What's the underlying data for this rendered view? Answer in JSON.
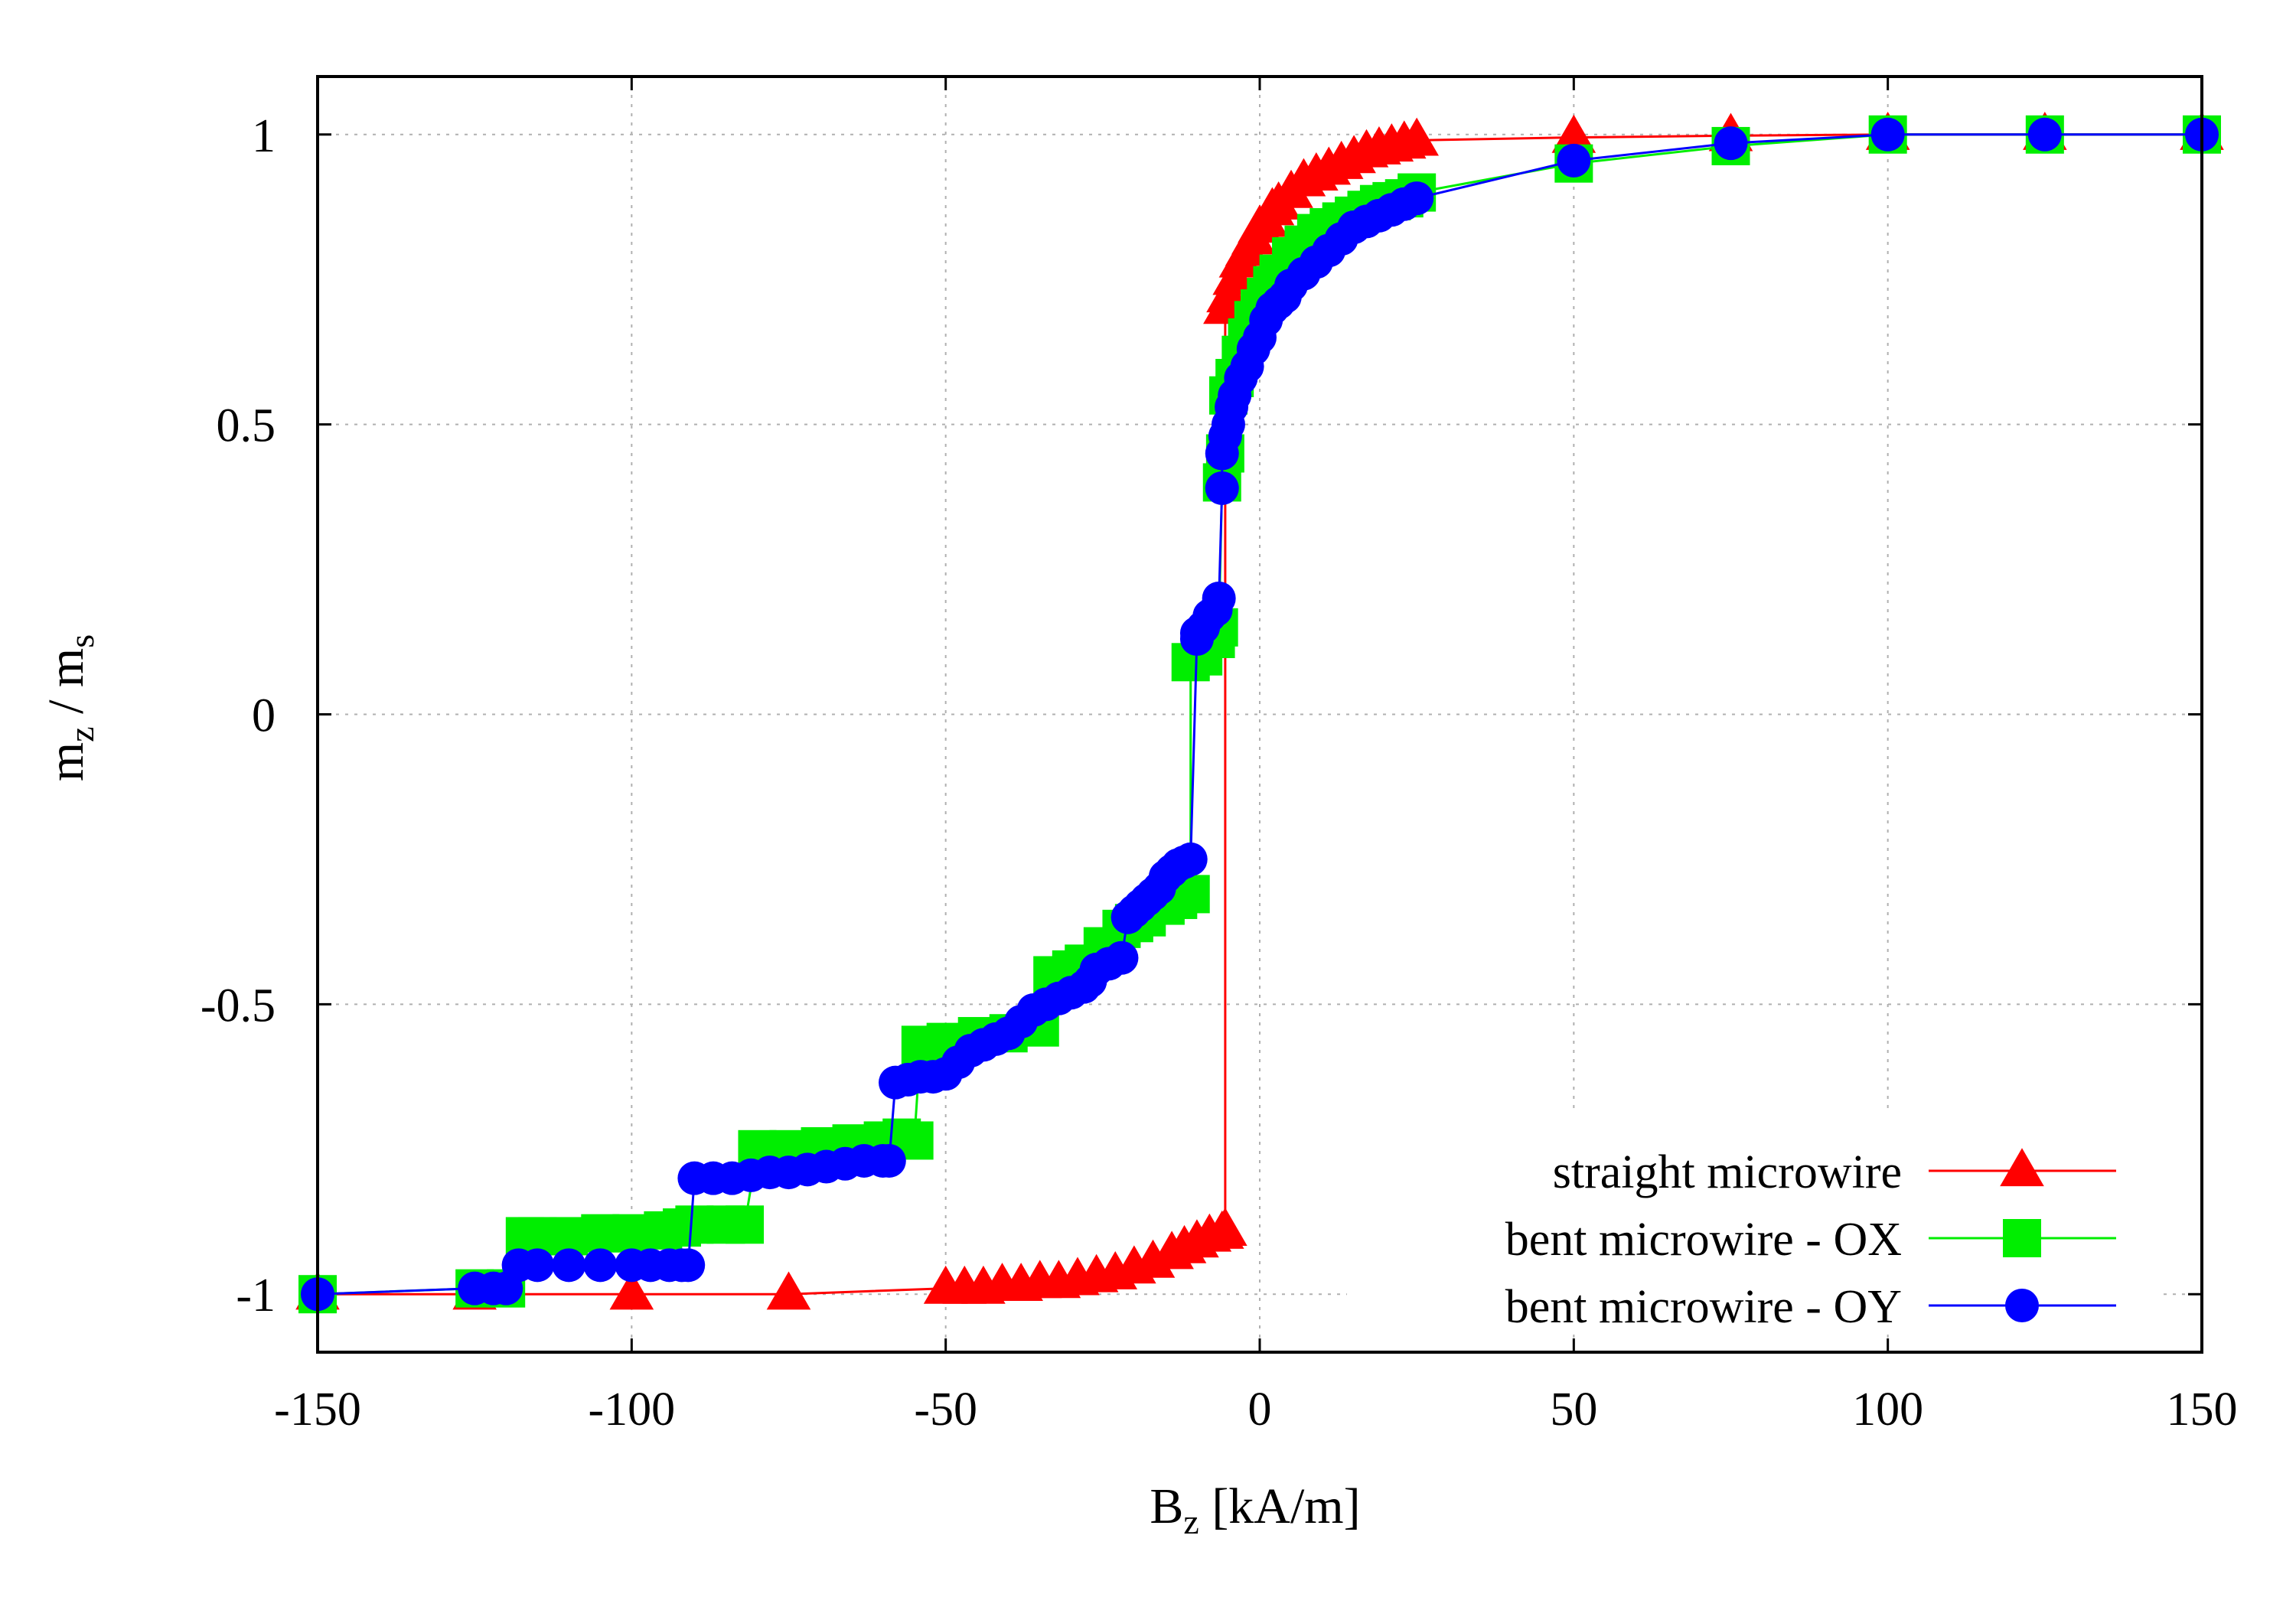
{
  "chart_data": {
    "type": "line",
    "xlabel": {
      "main": "B",
      "sub": "z",
      "rest": " [kA/m]"
    },
    "ylabel": {
      "m1": "m",
      "s1": "z",
      "mid": " / m",
      "s2": "s"
    },
    "xlim": [
      -150,
      150
    ],
    "ylim": [
      -1.1,
      1.1
    ],
    "x_ticks": [
      -150,
      -100,
      -50,
      0,
      50,
      100,
      150
    ],
    "x_tick_labels": [
      "-150",
      "-100",
      "-50",
      "0",
      "50",
      "100",
      "150"
    ],
    "y_ticks": [
      -1,
      -0.5,
      0,
      0.5,
      1
    ],
    "y_tick_labels": [
      "-1",
      "-0.5",
      "0",
      "0.5",
      "1"
    ],
    "grid": true,
    "legend_position": "bottom-right",
    "series": [
      {
        "name": "straight microwire",
        "color": "#ff0000",
        "marker": "triangle",
        "x": [
          -150,
          -125,
          -100,
          -75,
          -50,
          -47,
          -44,
          -41,
          -38,
          -35,
          -32,
          -29,
          -26,
          -23,
          -20,
          -17,
          -14,
          -12,
          -10,
          -8,
          -6,
          -5.5,
          -5.5,
          -5,
          -4,
          -3,
          -2,
          -1,
          0,
          1,
          2,
          3,
          5,
          7,
          9,
          11,
          13,
          15,
          17,
          19,
          21,
          23,
          25,
          50,
          75,
          100,
          125,
          150
        ],
        "y": [
          -1.0,
          -1.0,
          -1.0,
          -1.0,
          -0.99,
          -0.99,
          -0.99,
          -0.985,
          -0.985,
          -0.98,
          -0.98,
          -0.975,
          -0.97,
          -0.965,
          -0.955,
          -0.945,
          -0.93,
          -0.92,
          -0.91,
          -0.9,
          -0.895,
          -0.89,
          0.7,
          0.72,
          0.75,
          0.78,
          0.8,
          0.82,
          0.84,
          0.85,
          0.87,
          0.88,
          0.9,
          0.92,
          0.93,
          0.94,
          0.95,
          0.96,
          0.97,
          0.975,
          0.98,
          0.985,
          0.99,
          0.995,
          0.998,
          1.0,
          1.0,
          1.0
        ]
      },
      {
        "name": "bent microwire - OX",
        "color": "#00ee00",
        "marker": "square",
        "x": [
          -150,
          -125,
          -120,
          -117,
          -115,
          -110,
          -105,
          -100,
          -95,
          -92,
          -90,
          -85,
          -82,
          -80,
          -75,
          -70,
          -65,
          -60,
          -57,
          -55,
          -54,
          -50,
          -45,
          -40,
          -35,
          -33,
          -30,
          -28,
          -25,
          -22,
          -20,
          -18,
          -15,
          -13,
          -11,
          -11,
          -9,
          -7,
          -6.5,
          -6,
          -5.5,
          -5,
          -4,
          -3,
          -2,
          -1,
          0,
          1,
          2,
          3,
          5,
          7,
          9,
          11,
          13,
          15,
          17,
          19,
          21,
          23,
          25,
          50,
          75,
          100,
          125,
          150
        ],
        "y": [
          -1.0,
          -0.99,
          -0.99,
          -0.9,
          -0.9,
          -0.9,
          -0.895,
          -0.895,
          -0.89,
          -0.885,
          -0.88,
          -0.88,
          -0.88,
          -0.75,
          -0.75,
          -0.745,
          -0.74,
          -0.735,
          -0.73,
          -0.735,
          -0.57,
          -0.565,
          -0.555,
          -0.55,
          -0.54,
          -0.45,
          -0.44,
          -0.43,
          -0.4,
          -0.37,
          -0.36,
          -0.35,
          -0.33,
          -0.32,
          -0.31,
          0.09,
          0.1,
          0.13,
          0.15,
          0.4,
          0.45,
          0.55,
          0.58,
          0.62,
          0.65,
          0.68,
          0.7,
          0.72,
          0.74,
          0.76,
          0.79,
          0.81,
          0.83,
          0.84,
          0.85,
          0.86,
          0.87,
          0.88,
          0.885,
          0.89,
          0.9,
          0.95,
          0.98,
          1.0,
          1.0,
          1.0
        ]
      },
      {
        "name": "bent microwire - OY",
        "color": "#0000ff",
        "marker": "circle",
        "x": [
          -150,
          -125,
          -122,
          -120,
          -118,
          -115,
          -110,
          -105,
          -100,
          -97,
          -94,
          -92,
          -91,
          -90,
          -87,
          -84,
          -81,
          -78,
          -75,
          -72,
          -69,
          -66,
          -63,
          -60,
          -59,
          -58,
          -56,
          -54,
          -52,
          -50,
          -48,
          -46,
          -44,
          -42,
          -40,
          -38,
          -36,
          -34,
          -32,
          -30,
          -28,
          -27,
          -26,
          -24,
          -22,
          -21,
          -20,
          -19,
          -18,
          -17,
          -16,
          -15,
          -14,
          -13,
          -12,
          -11,
          -10,
          -10,
          -9,
          -8,
          -7,
          -6.5,
          -6,
          -6,
          -5.5,
          -5,
          -4.5,
          -4,
          -3,
          -2,
          -1,
          0,
          1,
          2,
          3,
          4,
          5,
          7,
          9,
          11,
          13,
          15,
          17,
          19,
          21,
          23,
          25,
          50,
          75,
          100,
          125,
          150
        ],
        "y": [
          -1.0,
          -0.99,
          -0.99,
          -0.99,
          -0.95,
          -0.95,
          -0.95,
          -0.95,
          -0.95,
          -0.95,
          -0.95,
          -0.95,
          -0.95,
          -0.8,
          -0.8,
          -0.8,
          -0.795,
          -0.79,
          -0.79,
          -0.785,
          -0.78,
          -0.775,
          -0.77,
          -0.77,
          -0.77,
          -0.635,
          -0.63,
          -0.625,
          -0.625,
          -0.62,
          -0.6,
          -0.58,
          -0.57,
          -0.56,
          -0.55,
          -0.53,
          -0.51,
          -0.5,
          -0.49,
          -0.48,
          -0.47,
          -0.46,
          -0.44,
          -0.43,
          -0.42,
          -0.35,
          -0.34,
          -0.33,
          -0.32,
          -0.31,
          -0.3,
          -0.28,
          -0.27,
          -0.26,
          -0.255,
          -0.25,
          0.13,
          0.14,
          0.15,
          0.17,
          0.18,
          0.2,
          0.39,
          0.45,
          0.48,
          0.5,
          0.53,
          0.55,
          0.58,
          0.6,
          0.63,
          0.65,
          0.68,
          0.7,
          0.71,
          0.72,
          0.74,
          0.76,
          0.78,
          0.8,
          0.82,
          0.84,
          0.85,
          0.86,
          0.87,
          0.88,
          0.89,
          0.955,
          0.985,
          1.0,
          1.0,
          1.0
        ]
      }
    ]
  }
}
